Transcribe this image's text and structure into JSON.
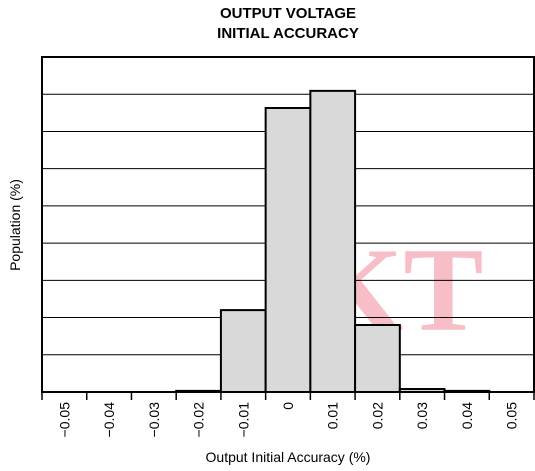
{
  "chart_data": {
    "type": "histogram",
    "title": [
      "OUTPUT VOLTAGE",
      "INITIAL ACCURACY"
    ],
    "xlabel": "Output Initial Accuracy (%)",
    "ylabel": "Population (%)",
    "watermark": "KT",
    "bins": [
      -0.055,
      -0.045,
      -0.035,
      -0.025,
      -0.015,
      -0.005,
      0.005,
      0.015,
      0.025,
      0.035,
      0.045,
      0.055
    ],
    "values": [
      0,
      0,
      0,
      0.03,
      2.2,
      7.63,
      8.09,
      1.8,
      0.08,
      0.03,
      0
    ],
    "color": "#d9d9d9",
    "xlim": [
      -0.055,
      0.055
    ],
    "xticks": [
      {
        "value": -0.05,
        "label": "−0.05"
      },
      {
        "value": -0.04,
        "label": "−0.04"
      },
      {
        "value": -0.03,
        "label": "−0.03"
      },
      {
        "value": -0.02,
        "label": "−0.02"
      },
      {
        "value": -0.01,
        "label": "−0.01"
      },
      0,
      0.01,
      0.02,
      0.03,
      0.04,
      0.05
    ],
    "ylim": [
      0,
      9
    ],
    "yticks": [
      0,
      1,
      2,
      3,
      4,
      5,
      6,
      7,
      8,
      9
    ],
    "ytick_labels": false,
    "grid": true
  }
}
